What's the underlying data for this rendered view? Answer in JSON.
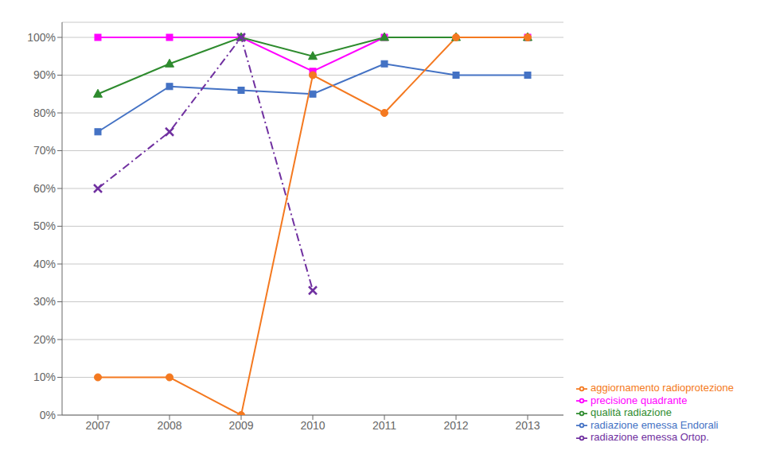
{
  "chart_data": {
    "type": "line",
    "x": [
      2007,
      2008,
      2009,
      2010,
      2011,
      2012,
      2013
    ],
    "xlim": [
      2006.5,
      2013.5
    ],
    "xticks": [
      2007,
      2008,
      2009,
      2010,
      2011,
      2012,
      2013
    ],
    "ylim": [
      0,
      104
    ],
    "yticks": [
      {
        "value": 0,
        "label": "0%"
      },
      {
        "value": 10,
        "label": "10%"
      },
      {
        "value": 20,
        "label": "20%"
      },
      {
        "value": 30,
        "label": "30%"
      },
      {
        "value": 40,
        "label": "40%"
      },
      {
        "value": 50,
        "label": "50%"
      },
      {
        "value": 60,
        "label": "60%"
      },
      {
        "value": 70,
        "label": "70%"
      },
      {
        "value": 80,
        "label": "80%"
      },
      {
        "value": 90,
        "label": "90%"
      },
      {
        "value": 100,
        "label": "100%"
      }
    ],
    "grid": true,
    "legend": "lower right",
    "series": [
      {
        "name": "precisione quadrante",
        "color": "#ff00ff",
        "values": [
          100,
          100,
          100,
          91,
          100,
          null,
          100
        ],
        "marker": "square",
        "line_style": "solid"
      },
      {
        "name": "qualità radiazione",
        "color": "#2e8b2e",
        "values": [
          85,
          93,
          100,
          95,
          100,
          100,
          100
        ],
        "marker": "triangle",
        "line_style": "solid"
      },
      {
        "name": "radiazione emessa Endorali",
        "color": "#4472c4",
        "values": [
          75,
          87,
          86,
          85,
          93,
          90,
          90
        ],
        "marker": "square",
        "line_style": "solid"
      },
      {
        "name": "radiazione emessa Ortop.",
        "color": "#7030a0",
        "values": [
          60,
          75,
          100,
          33,
          null,
          null,
          null
        ],
        "marker": "cross",
        "line_style": "dashdot"
      },
      {
        "name": "aggiornamento radioprotezione",
        "color": "#f47920",
        "values": [
          10,
          10,
          0,
          90,
          80,
          100,
          100
        ],
        "marker": "circle",
        "line_style": "solid"
      }
    ]
  }
}
